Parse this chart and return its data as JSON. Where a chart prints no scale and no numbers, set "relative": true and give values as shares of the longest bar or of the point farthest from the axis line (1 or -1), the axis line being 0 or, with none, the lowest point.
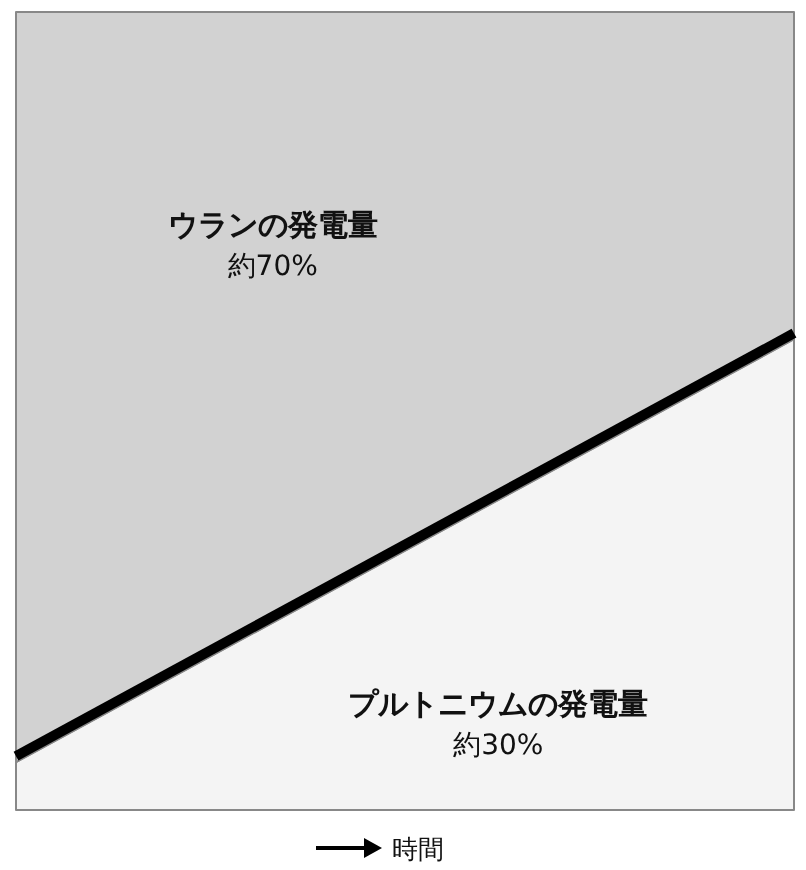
{
  "chart_data": {
    "type": "area",
    "stacked": true,
    "relative": true,
    "categories": [
      null,
      null
    ],
    "xlabel": "時間",
    "series": [
      {
        "name": "プルトニウムの発電量",
        "color": "#f4f4f4",
        "values": [
          0.06,
          0.59
        ]
      },
      {
        "name": "ウランの発電量",
        "color": "#d2d2d2",
        "values": [
          0.94,
          0.41
        ]
      }
    ],
    "annotations": [
      "約30%",
      "約70%"
    ]
  }
}
